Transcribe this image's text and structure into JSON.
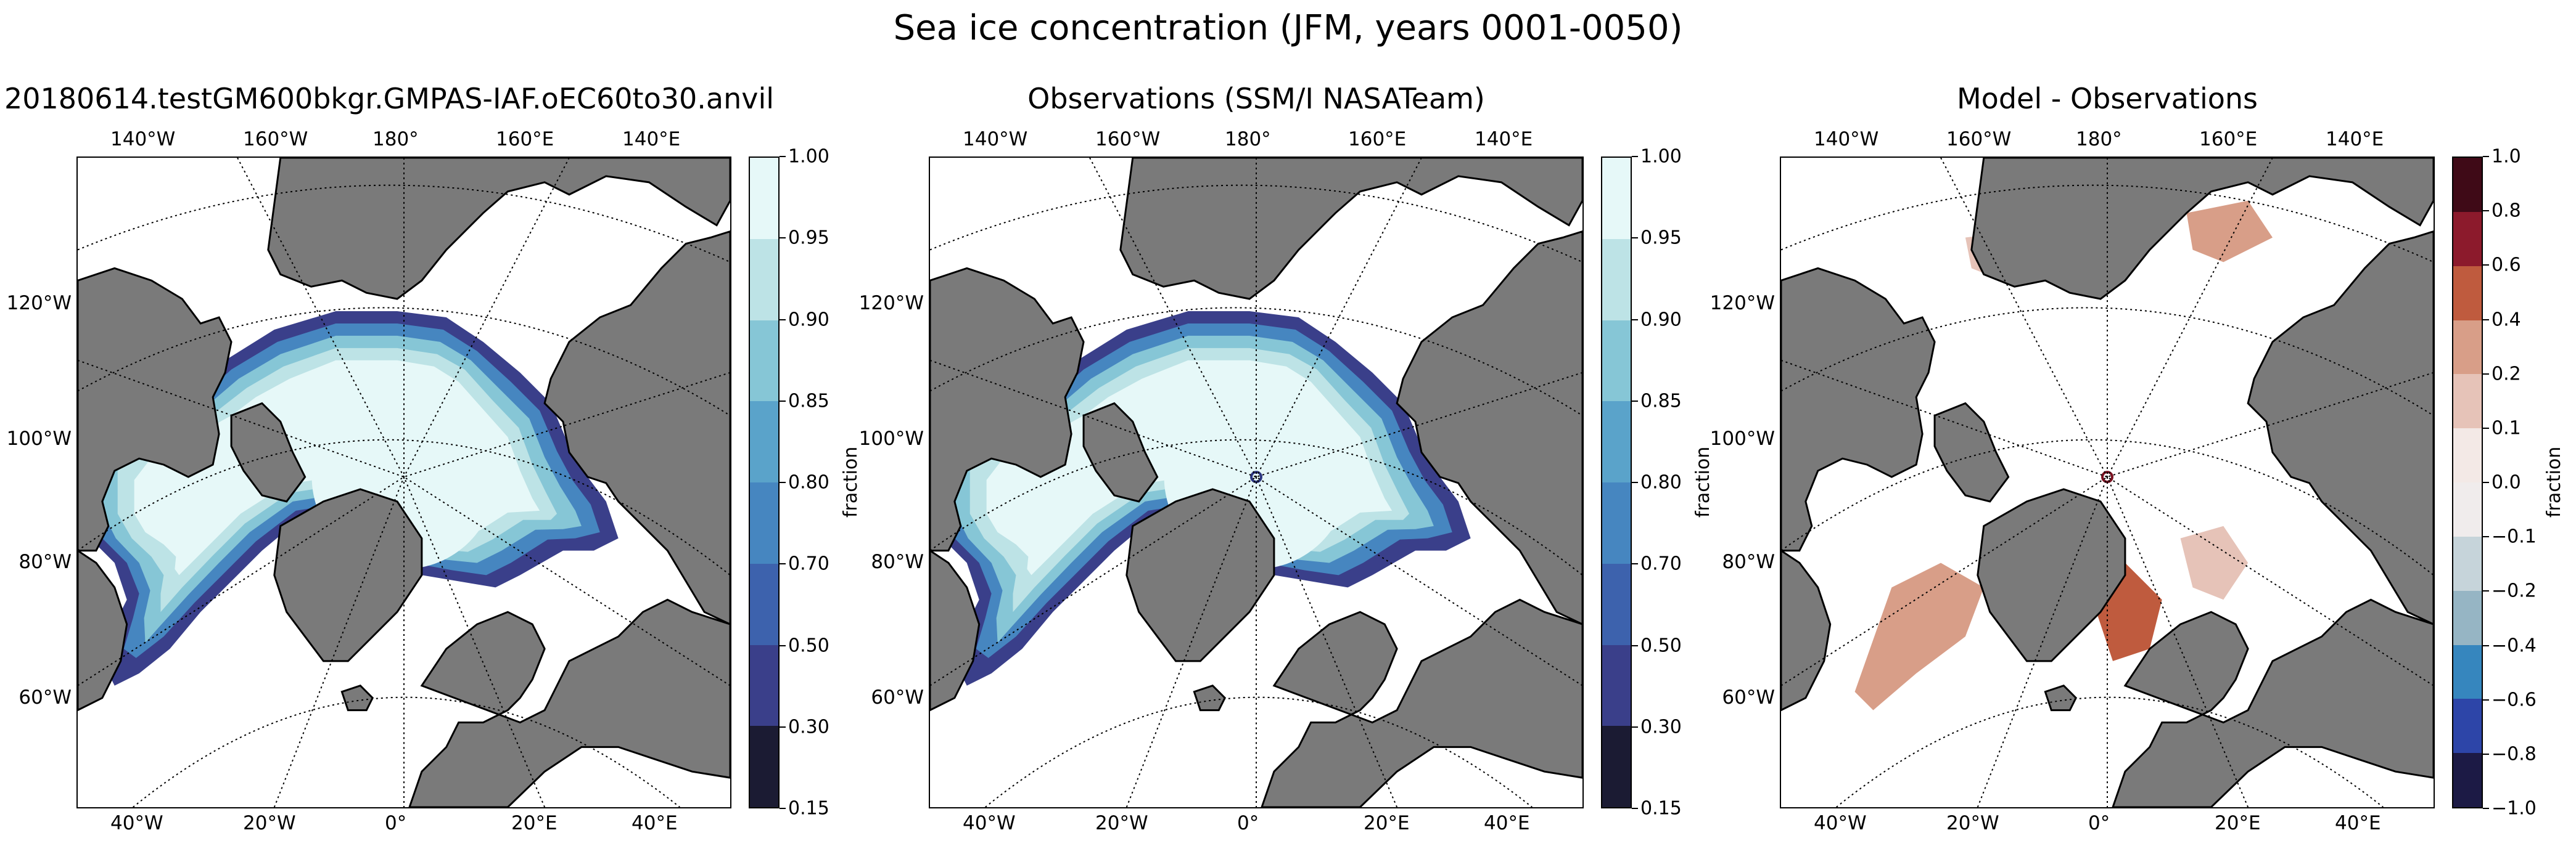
{
  "suptitle": "Sea ice concentration (JFM, years 0001-0050)",
  "panels": [
    {
      "title": "20180614.testGM600bkgr.GMPAS-IAF.oEC60to30.anvil",
      "colorbar_label": "fraction",
      "colorbar_ticks": [
        "1.00",
        "0.95",
        "0.90",
        "0.85",
        "0.80",
        "0.70",
        "0.50",
        "0.30",
        "0.15"
      ]
    },
    {
      "title": "Observations (SSM/I NASATeam)",
      "colorbar_label": "fraction",
      "colorbar_ticks": [
        "1.00",
        "0.95",
        "0.90",
        "0.85",
        "0.80",
        "0.70",
        "0.50",
        "0.30",
        "0.15"
      ]
    },
    {
      "title": "Model - Observations",
      "colorbar_label": "fraction",
      "colorbar_ticks": [
        "1.0",
        "0.8",
        "0.6",
        "0.4",
        "0.2",
        "0.1",
        "0.0",
        "−0.1",
        "−0.2",
        "−0.4",
        "−0.6",
        "−0.8",
        "−1.0"
      ]
    }
  ],
  "map_labels": {
    "top": [
      "140°W",
      "160°W",
      "180°",
      "160°E",
      "140°E"
    ],
    "bottom": [
      "40°W",
      "20°W",
      "0°",
      "20°E",
      "40°E"
    ],
    "left": [
      "120°W",
      "100°W",
      "80°W",
      "60°W"
    ]
  },
  "colors": {
    "land": "#7a7a7a",
    "ocean": "#ffffff",
    "conc_levels": [
      "#1b1b33",
      "#3a3f8a",
      "#3d62ad",
      "#4686c0",
      "#5aa3ca",
      "#86c6d6",
      "#bde3e6",
      "#e6f8f8"
    ],
    "diff_levels": [
      "#1c1a45",
      "#2d45a8",
      "#3686be",
      "#96b5c4",
      "#c6d4da",
      "#f0ecec",
      "#f3e9e6",
      "#e6c3b8",
      "#d89e88",
      "#bf5b3e",
      "#8c1a2c",
      "#3f0a17"
    ]
  },
  "chart_data": {
    "type": "heatmap",
    "title": "Sea ice concentration (JFM, years 0001-0050)",
    "panels": [
      "20180614.testGM600bkgr.GMPAS-IAF.oEC60to30.anvil",
      "Observations (SSM/I NASATeam)",
      "Model - Observations"
    ],
    "concentration_levels": [
      0.15,
      0.3,
      0.5,
      0.7,
      0.8,
      0.85,
      0.9,
      0.95,
      1.0
    ],
    "difference_levels": [
      -1.0,
      -0.8,
      -0.6,
      -0.4,
      -0.2,
      -0.1,
      0.0,
      0.1,
      0.2,
      0.4,
      0.6,
      0.8,
      1.0
    ],
    "colorbar_label": "fraction"
  }
}
